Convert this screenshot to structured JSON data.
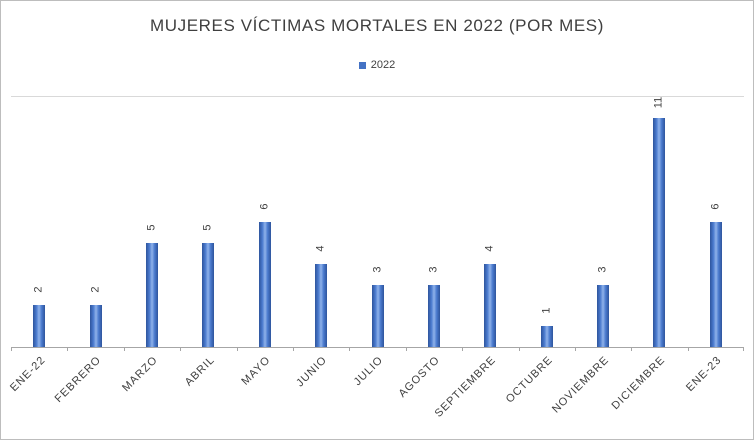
{
  "chart_data": {
    "type": "bar",
    "title": "MUJERES VÍCTIMAS MORTALES EN 2022 (POR MES)",
    "categories": [
      "ENE-22",
      "FEBRERO",
      "MARZO",
      "ABRIL",
      "MAYO",
      "JUNIO",
      "JULIO",
      "AGOSTO",
      "SEPTIEMBRE",
      "OCTUBRE",
      "NOVIEMBRE",
      "DICIEMBRE",
      "ENE-23"
    ],
    "series": [
      {
        "name": "2022",
        "values": [
          2,
          2,
          5,
          5,
          6,
          4,
          3,
          3,
          4,
          1,
          3,
          11,
          6
        ]
      }
    ],
    "ylim": [
      0,
      12
    ],
    "xlabel": "",
    "ylabel": "",
    "grid": "top-border-only",
    "legend_position": "top-center",
    "data_labels": "rotated-vertical-above-bars",
    "category_label_rotation_deg": -45,
    "bar_color": "#4472C4",
    "bar_color_dark": "#2e549c",
    "bar_color_light": "#8fb2ea"
  }
}
